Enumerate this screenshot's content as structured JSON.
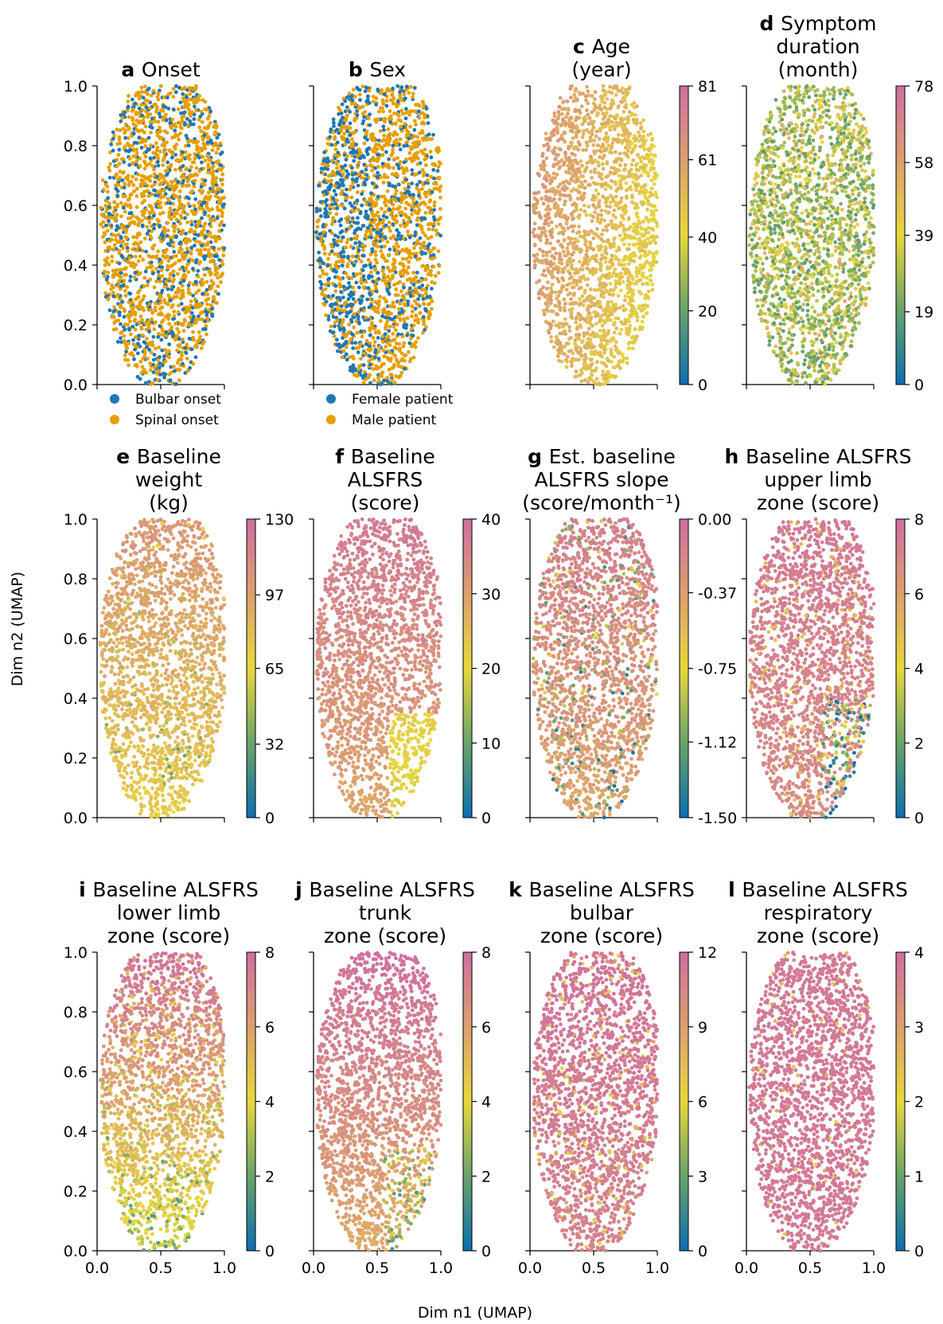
{
  "figure": {
    "ylabel": "Dim n2 (UMAP)",
    "xlabel": "Dim n1 (UMAP)"
  },
  "colors": {
    "bulbar": "#1f77b4",
    "spinal": "#e69f00",
    "female": "#1f77b4",
    "male": "#e69f00",
    "colormap": [
      "#0a6fae",
      "#6aa36a",
      "#e7d83c",
      "#dca070",
      "#cf6f9f"
    ]
  },
  "chart_data": [
    {
      "id": "a",
      "letter": "a",
      "title_lines": [
        "Onset"
      ],
      "type": "scatter",
      "xlim": [
        0,
        1
      ],
      "ylim": [
        0,
        1
      ],
      "yticks": [
        "0.0",
        "0.2",
        "0.4",
        "0.6",
        "0.8",
        "1.0"
      ],
      "xticks": [],
      "points": 2000,
      "legend": [
        {
          "label": "Bulbar onset",
          "color": "#1f77b4"
        },
        {
          "label": "Spinal onset",
          "color": "#e69f00"
        }
      ]
    },
    {
      "id": "b",
      "letter": "b",
      "title_lines": [
        "Sex"
      ],
      "type": "scatter",
      "xlim": [
        0,
        1
      ],
      "ylim": [
        0,
        1
      ],
      "yticks": [],
      "xticks": [],
      "points": 2000,
      "legend": [
        {
          "label": "Female patient",
          "color": "#1f77b4"
        },
        {
          "label": "Male patient",
          "color": "#e69f00"
        }
      ]
    },
    {
      "id": "c",
      "letter": "c",
      "title_lines": [
        "Age",
        "(year)"
      ],
      "type": "scatter",
      "xlim": [
        0,
        1
      ],
      "ylim": [
        0,
        1
      ],
      "yticks": [],
      "xticks": [],
      "points": 2000,
      "colorbar": {
        "min": 0,
        "max": 81,
        "ticks": [
          "0",
          "20",
          "40",
          "61",
          "81"
        ]
      }
    },
    {
      "id": "d",
      "letter": "d",
      "title_lines": [
        "Symptom",
        "duration",
        "(month)"
      ],
      "type": "scatter",
      "xlim": [
        0,
        1
      ],
      "ylim": [
        0,
        1
      ],
      "yticks": [],
      "xticks": [],
      "points": 2000,
      "colorbar": {
        "min": 0,
        "max": 78,
        "ticks": [
          "0",
          "19",
          "39",
          "58",
          "78"
        ]
      }
    },
    {
      "id": "e",
      "letter": "e",
      "title_lines": [
        "Baseline",
        "weight",
        "(kg)"
      ],
      "type": "scatter",
      "xlim": [
        0,
        1
      ],
      "ylim": [
        0,
        1
      ],
      "yticks": [
        "0.0",
        "0.2",
        "0.4",
        "0.6",
        "0.8",
        "1.0"
      ],
      "xticks": [],
      "points": 2000,
      "colorbar": {
        "min": 0,
        "max": 130,
        "ticks": [
          "0",
          "32",
          "65",
          "97",
          "130"
        ]
      }
    },
    {
      "id": "f",
      "letter": "f",
      "title_lines": [
        "Baseline",
        "ALSFRS",
        "(score)"
      ],
      "type": "scatter",
      "xlim": [
        0,
        1
      ],
      "ylim": [
        0,
        1
      ],
      "yticks": [],
      "xticks": [],
      "points": 2000,
      "colorbar": {
        "min": 0,
        "max": 40,
        "ticks": [
          "0",
          "10",
          "20",
          "30",
          "40"
        ]
      }
    },
    {
      "id": "g",
      "letter": "g",
      "title_lines": [
        "Est. baseline",
        "ALSFRS slope",
        "(score/month⁻¹)"
      ],
      "type": "scatter",
      "xlim": [
        0,
        1
      ],
      "ylim": [
        0,
        1
      ],
      "yticks": [],
      "xticks": [],
      "points": 2000,
      "colorbar": {
        "min": -1.5,
        "max": 0,
        "ticks": [
          "-1.50",
          "-1.12",
          "-0.75",
          "-0.37",
          "0.00"
        ]
      }
    },
    {
      "id": "h",
      "letter": "h",
      "title_lines": [
        "Baseline ALSFRS",
        "upper limb",
        "zone (score)"
      ],
      "type": "scatter",
      "xlim": [
        0,
        1
      ],
      "ylim": [
        0,
        1
      ],
      "yticks": [],
      "xticks": [],
      "points": 2000,
      "colorbar": {
        "min": 0,
        "max": 8,
        "ticks": [
          "0",
          "2",
          "4",
          "6",
          "8"
        ]
      }
    },
    {
      "id": "i",
      "letter": "i",
      "title_lines": [
        "Baseline ALSFRS",
        "lower limb",
        "zone (score)"
      ],
      "type": "scatter",
      "xlim": [
        0,
        1
      ],
      "ylim": [
        0,
        1
      ],
      "yticks": [
        "0.0",
        "0.2",
        "0.4",
        "0.6",
        "0.8",
        "1.0"
      ],
      "xticks": [
        "0.0",
        "0.5",
        "1.0"
      ],
      "points": 2000,
      "colorbar": {
        "min": 0,
        "max": 8,
        "ticks": [
          "0",
          "2",
          "4",
          "6",
          "8"
        ]
      }
    },
    {
      "id": "j",
      "letter": "j",
      "title_lines": [
        "Baseline ALSFRS",
        "trunk",
        "zone (score)"
      ],
      "type": "scatter",
      "xlim": [
        0,
        1
      ],
      "ylim": [
        0,
        1
      ],
      "yticks": [],
      "xticks": [
        "0.0",
        "0.5",
        "1.0"
      ],
      "points": 2000,
      "colorbar": {
        "min": 0,
        "max": 8,
        "ticks": [
          "0",
          "2",
          "4",
          "6",
          "8"
        ]
      }
    },
    {
      "id": "k",
      "letter": "k",
      "title_lines": [
        "Baseline ALSFRS",
        "bulbar",
        "zone (score)"
      ],
      "type": "scatter",
      "xlim": [
        0,
        1
      ],
      "ylim": [
        0,
        1
      ],
      "yticks": [],
      "xticks": [
        "0.0",
        "0.5",
        "1.0"
      ],
      "points": 2000,
      "colorbar": {
        "min": 0,
        "max": 12,
        "ticks": [
          "0",
          "3",
          "6",
          "9",
          "12"
        ]
      }
    },
    {
      "id": "l",
      "letter": "l",
      "title_lines": [
        "Baseline ALSFRS",
        "respiratory",
        "zone (score)"
      ],
      "type": "scatter",
      "xlim": [
        0,
        1
      ],
      "ylim": [
        0,
        1
      ],
      "yticks": [],
      "xticks": [
        "0.0",
        "0.5",
        "1.0"
      ],
      "points": 2000,
      "colorbar": {
        "min": 0,
        "max": 4,
        "ticks": [
          "0",
          "1",
          "2",
          "3",
          "4"
        ]
      }
    }
  ]
}
